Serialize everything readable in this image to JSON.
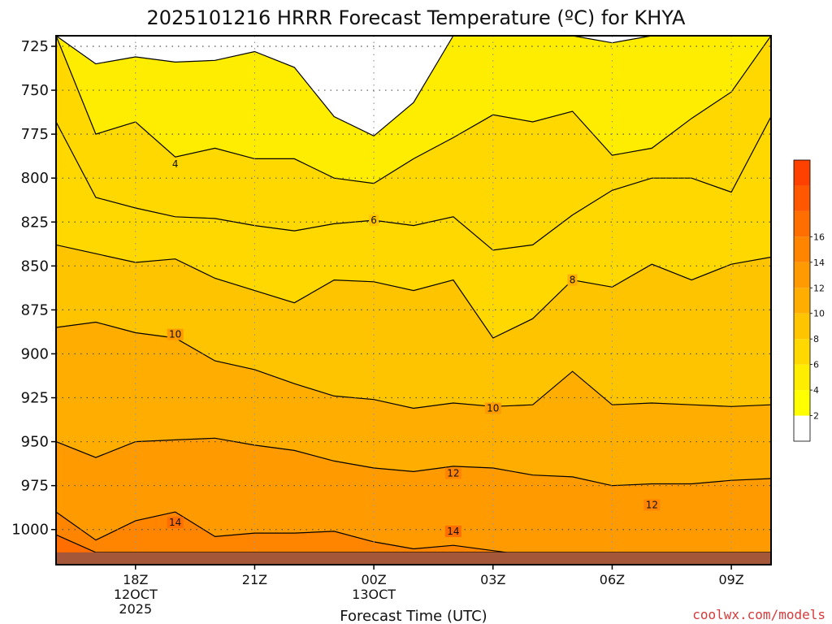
{
  "chart_data": {
    "type": "heatmap",
    "title": "2025101216 HRRR Forecast Temperature (ºC) for KHYA",
    "xlabel": "Forecast Time (UTC)",
    "ylabel": "",
    "watermark": "coolwx.com/models",
    "x_hours": [
      16,
      17,
      18,
      19,
      20,
      21,
      22,
      23,
      24,
      25,
      26,
      27,
      28,
      29,
      30,
      31,
      32,
      33,
      34
    ],
    "xlim": [
      16,
      34
    ],
    "x_ticks": [
      {
        "hour": 18,
        "lines": [
          "18Z",
          "12OCT",
          "2025"
        ]
      },
      {
        "hour": 21,
        "lines": [
          "21Z"
        ]
      },
      {
        "hour": 24,
        "lines": [
          "00Z",
          "13OCT"
        ]
      },
      {
        "hour": 27,
        "lines": [
          "03Z"
        ]
      },
      {
        "hour": 30,
        "lines": [
          "06Z"
        ]
      },
      {
        "hour": 33,
        "lines": [
          "09Z"
        ]
      }
    ],
    "y_ticks": [
      "725",
      "750",
      "775",
      "800",
      "825",
      "850",
      "875",
      "900",
      "925",
      "950",
      "975",
      "1000"
    ],
    "ylim": [
      719,
      1020
    ],
    "y_inverted": true,
    "surface_pressure_hpa": 1013,
    "surface_color": "#a5573a",
    "contour_interval_c": 1,
    "isotherms": [
      {
        "level": 3,
        "p": [
          719,
          735,
          731,
          734,
          733,
          728,
          737,
          765,
          776,
          757,
          719,
          719,
          719,
          719,
          723,
          719,
          719,
          719,
          719
        ]
      },
      {
        "level": 4,
        "p": [
          719,
          775,
          768,
          788,
          783,
          789,
          789,
          800,
          803,
          789,
          777,
          764,
          768,
          762,
          787,
          783,
          766,
          751,
          719
        ]
      },
      {
        "level": 5,
        "p": [
          768,
          811,
          817,
          822,
          823,
          827,
          830,
          826,
          824,
          827,
          822,
          841,
          838,
          821,
          807,
          800,
          800,
          808,
          765
        ]
      },
      {
        "level": 6,
        "p": [
          838,
          843,
          848,
          846,
          857,
          864,
          871,
          858,
          859,
          864,
          858,
          891,
          880,
          858,
          862,
          849,
          858,
          849,
          845
        ]
      },
      {
        "level": 8,
        "p": [
          885,
          882,
          888,
          891,
          904,
          909,
          917,
          924,
          926,
          931,
          928,
          930,
          929,
          910,
          929,
          928,
          929,
          930,
          929
        ]
      },
      {
        "level": 10,
        "p": [
          950,
          959,
          950,
          949,
          948,
          952,
          955,
          961,
          965,
          967,
          964,
          965,
          969,
          970,
          975,
          974,
          974,
          972,
          971
        ]
      },
      {
        "level": 12,
        "p": [
          990,
          1006,
          995,
          990,
          1004,
          1002,
          1002,
          1001,
          1007,
          1011,
          1009,
          1012,
          1015,
          1019,
          1021,
          1019,
          1016,
          1017,
          1018
        ]
      },
      {
        "level": 14,
        "p": [
          1003,
          1013,
          1013,
          1013,
          1013,
          1013,
          1013,
          1013,
          1013,
          1013,
          1013,
          1013,
          1013,
          1013,
          1013,
          1013,
          1013,
          1013,
          1013
        ]
      }
    ],
    "contour_labels": [
      {
        "text": "4",
        "hour": 19,
        "p": 792
      },
      {
        "text": "6",
        "hour": 24,
        "p": 824
      },
      {
        "text": "8",
        "hour": 29,
        "p": 858
      },
      {
        "text": "10",
        "hour": 19,
        "p": 889
      },
      {
        "text": "10",
        "hour": 27,
        "p": 931
      },
      {
        "text": "12",
        "hour": 26,
        "p": 968
      },
      {
        "text": "12",
        "hour": 31,
        "p": 986
      },
      {
        "text": "14",
        "hour": 19,
        "p": 996
      },
      {
        "text": "14",
        "hour": 26,
        "p": 1001
      }
    ],
    "colorbar": {
      "colors": [
        "#ffffff",
        "#ffff00",
        "#ffed00",
        "#ffd800",
        "#ffc400",
        "#ffae00",
        "#ff9a00",
        "#ff8400",
        "#ff6e00",
        "#ff5800",
        "#ff4100"
      ],
      "labels": [
        "2",
        "4",
        "6",
        "8",
        "10",
        "12",
        "14",
        "16"
      ]
    }
  }
}
